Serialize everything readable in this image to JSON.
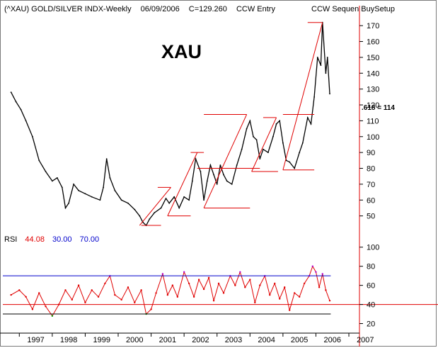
{
  "header": {
    "symbol_title": "(^XAU) GOLD/SILVER INDX-Weekly",
    "date": "06/09/2006",
    "close": "C=129.260",
    "note": "CCW Entry",
    "setup": "CCW Sequen BuySetup"
  },
  "chart_title": "XAU",
  "fib_annotation": ".618 = 114",
  "rsi_panel": {
    "label": "RSI",
    "value": "44.08",
    "lower": "30.00",
    "upper": "70.00",
    "value_color": "#e00000",
    "lower_color": "#0000cc",
    "upper_color": "#0000cc"
  },
  "chart_data": [
    {
      "type": "line",
      "series": [
        {
          "values_x": [
            1996.75,
            1996.9,
            1997.05,
            1997.2,
            1997.4,
            1997.6,
            1997.8,
            1998.0,
            1998.15,
            1998.3,
            1998.4,
            1998.5,
            1998.65,
            1998.8,
            1999.0,
            1999.2,
            1999.45,
            1999.55,
            1999.65,
            1999.75,
            1999.9,
            2000.1,
            2000.3,
            2000.5,
            2000.65,
            2000.75,
            2000.85,
            2000.95,
            2001.1,
            2001.3,
            2001.45,
            2001.55,
            2001.7,
            2001.85,
            2002.0,
            2002.15,
            2002.25,
            2002.35,
            2002.5,
            2002.6,
            2002.7,
            2002.8,
            2002.9,
            2003.0,
            2003.1,
            2003.2,
            2003.3,
            2003.45,
            2003.6,
            2003.75,
            2003.9,
            2004.0,
            2004.1,
            2004.2,
            2004.3,
            2004.4,
            2004.55,
            2004.7,
            2004.8,
            2004.9,
            2005.0,
            2005.1,
            2005.2,
            2005.35,
            2005.5,
            2005.6,
            2005.75,
            2005.85,
            2005.95,
            2006.05,
            2006.15,
            2006.2,
            2006.3,
            2006.35,
            2006.42
          ],
          "values_y": [
            128,
            122,
            117,
            110,
            100,
            85,
            78,
            72,
            74,
            68,
            55,
            58,
            70,
            66,
            64,
            62,
            60,
            68,
            86,
            74,
            66,
            60,
            58,
            54,
            50,
            46,
            44,
            48,
            52,
            55,
            61,
            58,
            62,
            55,
            62,
            60,
            72,
            86,
            78,
            60,
            72,
            82,
            76,
            70,
            82,
            76,
            72,
            70,
            82,
            92,
            105,
            110,
            100,
            98,
            86,
            92,
            90,
            100,
            108,
            110,
            96,
            85,
            84,
            80,
            90,
            96,
            112,
            108,
            125,
            150,
            145,
            172,
            140,
            150,
            127
          ]
        }
      ],
      "title": "XAU",
      "ylim": [
        40,
        175
      ],
      "yticks": [
        "170",
        "160",
        "150",
        "140",
        "130",
        "120",
        "110",
        "100",
        "90",
        "80",
        "70",
        "60",
        "50"
      ],
      "xlim": [
        1996.5,
        2007.3
      ],
      "xticks": [
        "1997",
        "1998",
        "1999",
        "2000",
        "2001",
        "2002",
        "2003",
        "2004",
        "2005",
        "2006",
        "2007"
      ],
      "grid": false
    },
    {
      "type": "line",
      "series": [
        {
          "name": "RSI",
          "values_x": [
            1996.75,
            1997.0,
            1997.2,
            1997.4,
            1997.6,
            1997.8,
            1998.0,
            1998.2,
            1998.4,
            1998.6,
            1998.8,
            1999.0,
            1999.2,
            1999.4,
            1999.6,
            1999.75,
            1999.9,
            2000.1,
            2000.3,
            2000.5,
            2000.7,
            2000.85,
            2001.0,
            2001.15,
            2001.35,
            2001.5,
            2001.65,
            2001.8,
            2002.0,
            2002.15,
            2002.3,
            2002.45,
            2002.6,
            2002.75,
            2002.9,
            2003.05,
            2003.2,
            2003.4,
            2003.55,
            2003.7,
            2003.85,
            2004.0,
            2004.15,
            2004.3,
            2004.45,
            2004.6,
            2004.75,
            2004.9,
            2005.05,
            2005.2,
            2005.35,
            2005.5,
            2005.65,
            2005.8,
            2005.9,
            2006.0,
            2006.1,
            2006.2,
            2006.3,
            2006.42
          ],
          "values_y": [
            50,
            55,
            48,
            35,
            52,
            38,
            28,
            40,
            55,
            45,
            60,
            42,
            55,
            48,
            62,
            70,
            50,
            45,
            58,
            42,
            55,
            30,
            35,
            52,
            72,
            50,
            60,
            48,
            74,
            62,
            48,
            66,
            56,
            68,
            44,
            62,
            52,
            70,
            60,
            74,
            58,
            66,
            42,
            60,
            70,
            50,
            62,
            46,
            58,
            34,
            52,
            48,
            62,
            70,
            80,
            74,
            58,
            72,
            55,
            44
          ]
        }
      ],
      "title": "RSI",
      "ylim": [
        10,
        105
      ],
      "yticks": [
        "100",
        "80",
        "60",
        "40",
        "20"
      ],
      "reference_lines": [
        70,
        40,
        30
      ],
      "xlim": [
        1996.5,
        2007.3
      ],
      "grid": false
    }
  ]
}
